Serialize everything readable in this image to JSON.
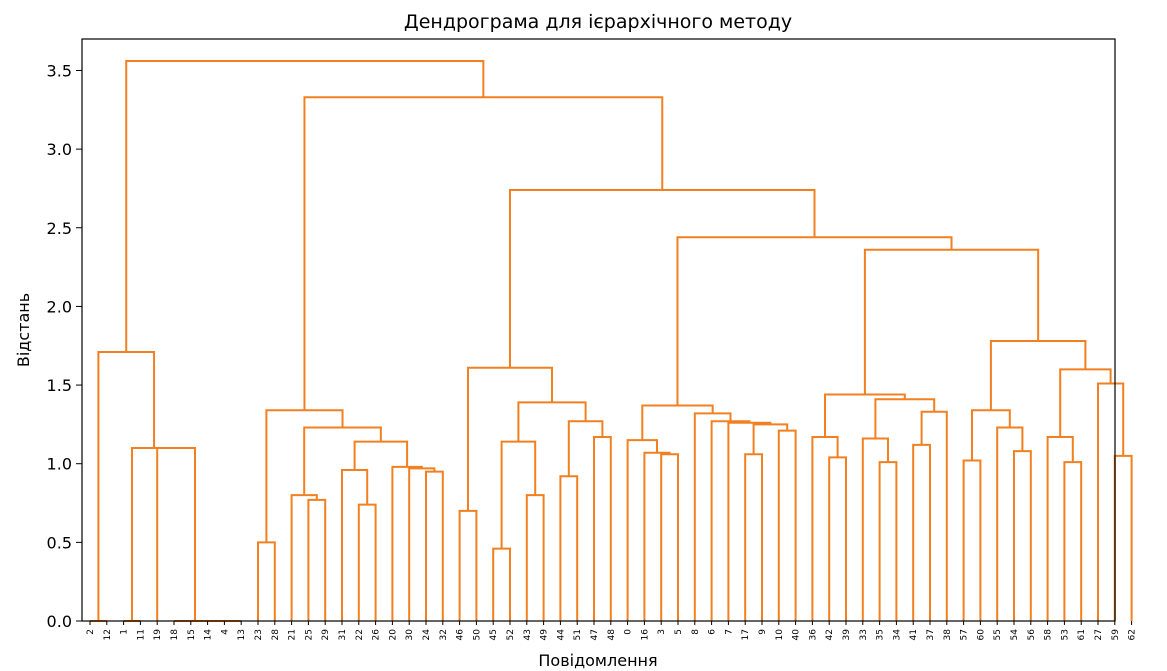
{
  "chart_data": {
    "type": "dendrogram",
    "title": "Дендрограма для ієрархічного методу",
    "xlabel": "Повідомлення",
    "ylabel": "Відстань",
    "ylim": [
      0.0,
      3.7
    ],
    "yticks": [
      0.0,
      0.5,
      1.0,
      1.5,
      2.0,
      2.5,
      3.0,
      3.5
    ],
    "ytick_labels": [
      "0.0",
      "0.5",
      "1.0",
      "1.5",
      "2.0",
      "2.5",
      "3.0",
      "3.5"
    ],
    "grid": false,
    "line_color": "#f28020",
    "leaves": [
      "2",
      "12",
      "1",
      "11",
      "19",
      "18",
      "15",
      "14",
      "4",
      "13",
      "23",
      "28",
      "21",
      "25",
      "29",
      "31",
      "22",
      "26",
      "20",
      "30",
      "24",
      "32",
      "46",
      "50",
      "45",
      "52",
      "43",
      "49",
      "44",
      "51",
      "47",
      "48",
      "0",
      "16",
      "3",
      "5",
      "8",
      "6",
      "7",
      "17",
      "9",
      "10",
      "40",
      "36",
      "42",
      "39",
      "33",
      "35",
      "34",
      "41",
      "37",
      "38",
      "57",
      "60",
      "55",
      "54",
      "56",
      "58",
      "53",
      "61",
      "27",
      "59",
      "62"
    ],
    "merges": [
      {
        "left": "2",
        "right": "12",
        "height": 0.0
      },
      {
        "left": "1",
        "right": "11",
        "height": 0.0
      },
      {
        "left": "15",
        "right": "14",
        "height": 0.0
      },
      {
        "left": "4",
        "right": "13",
        "height": 0.0
      },
      {
        "left": "#2",
        "right": "#3",
        "height": 0.0
      },
      {
        "left": "18",
        "right": "#4",
        "height": 0.0
      },
      {
        "left": "19",
        "right": "#5",
        "height": 1.1
      },
      {
        "left": "#1",
        "right": "#6",
        "height": 1.1
      },
      {
        "left": "#0",
        "right": "#7",
        "height": 1.71
      },
      {
        "left": "23",
        "right": "28",
        "height": 0.5
      },
      {
        "left": "25",
        "right": "29",
        "height": 0.77
      },
      {
        "left": "21",
        "right": "#10",
        "height": 0.8
      },
      {
        "left": "22",
        "right": "26",
        "height": 0.74
      },
      {
        "left": "31",
        "right": "#12",
        "height": 0.96
      },
      {
        "left": "24",
        "right": "32",
        "height": 0.95
      },
      {
        "left": "30",
        "right": "#14",
        "height": 0.97
      },
      {
        "left": "20",
        "right": "#15",
        "height": 0.98
      },
      {
        "left": "#13",
        "right": "#16",
        "height": 1.14
      },
      {
        "left": "#11",
        "right": "#17",
        "height": 1.23
      },
      {
        "left": "#9",
        "right": "#18",
        "height": 1.34
      },
      {
        "left": "46",
        "right": "50",
        "height": 0.7
      },
      {
        "left": "45",
        "right": "52",
        "height": 0.46
      },
      {
        "left": "43",
        "right": "49",
        "height": 0.8
      },
      {
        "left": "#21",
        "right": "#22",
        "height": 1.14
      },
      {
        "left": "44",
        "right": "51",
        "height": 0.92
      },
      {
        "left": "47",
        "right": "48",
        "height": 1.17
      },
      {
        "left": "#24",
        "right": "#25",
        "height": 1.27
      },
      {
        "left": "#23",
        "right": "#26",
        "height": 1.39
      },
      {
        "left": "#20",
        "right": "#27",
        "height": 1.61
      },
      {
        "left": "3",
        "right": "5",
        "height": 1.06
      },
      {
        "left": "16",
        "right": "#29",
        "height": 1.07
      },
      {
        "left": "0",
        "right": "#30",
        "height": 1.15
      },
      {
        "left": "17",
        "right": "9",
        "height": 1.06
      },
      {
        "left": "10",
        "right": "40",
        "height": 1.21
      },
      {
        "left": "#32",
        "right": "#33",
        "height": 1.25
      },
      {
        "left": "7",
        "right": "#34",
        "height": 1.26
      },
      {
        "left": "6",
        "right": "#35",
        "height": 1.27
      },
      {
        "left": "8",
        "right": "#36",
        "height": 1.32
      },
      {
        "left": "#31",
        "right": "#37",
        "height": 1.37
      },
      {
        "left": "42",
        "right": "39",
        "height": 1.04
      },
      {
        "left": "36",
        "right": "#39",
        "height": 1.17
      },
      {
        "left": "35",
        "right": "34",
        "height": 1.01
      },
      {
        "left": "33",
        "right": "#41",
        "height": 1.16
      },
      {
        "left": "41",
        "right": "37",
        "height": 1.12
      },
      {
        "left": "#43",
        "right": "38",
        "height": 1.33
      },
      {
        "left": "#42",
        "right": "#44",
        "height": 1.41
      },
      {
        "left": "#40",
        "right": "#45",
        "height": 1.44
      },
      {
        "left": "57",
        "right": "60",
        "height": 1.02
      },
      {
        "left": "54",
        "right": "56",
        "height": 1.08
      },
      {
        "left": "55",
        "right": "#48",
        "height": 1.23
      },
      {
        "left": "#47",
        "right": "#49",
        "height": 1.34
      },
      {
        "left": "53",
        "right": "61",
        "height": 1.01
      },
      {
        "left": "58",
        "right": "#51",
        "height": 1.17
      },
      {
        "left": "59",
        "right": "62",
        "height": 1.05
      },
      {
        "left": "27",
        "right": "#53",
        "height": 1.51
      },
      {
        "left": "#52",
        "right": "#54",
        "height": 1.6
      },
      {
        "left": "#50",
        "right": "#55",
        "height": 1.78
      },
      {
        "left": "#46",
        "right": "#56",
        "height": 2.36
      },
      {
        "left": "#38",
        "right": "#57",
        "height": 2.44
      },
      {
        "left": "#28",
        "right": "#58",
        "height": 2.74
      },
      {
        "left": "#19",
        "right": "#59",
        "height": 3.33
      },
      {
        "left": "#8",
        "right": "#60",
        "height": 3.56
      }
    ]
  }
}
